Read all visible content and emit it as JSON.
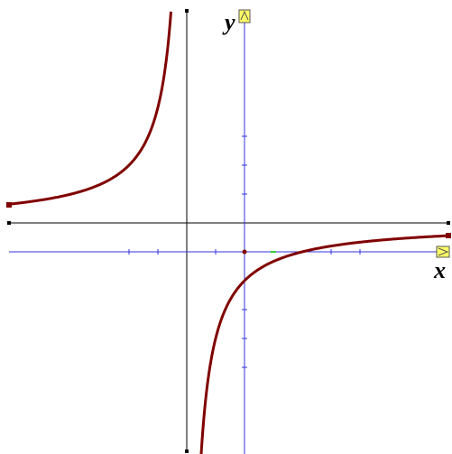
{
  "axes": {
    "x_label": "x",
    "y_label": "y"
  }
}
